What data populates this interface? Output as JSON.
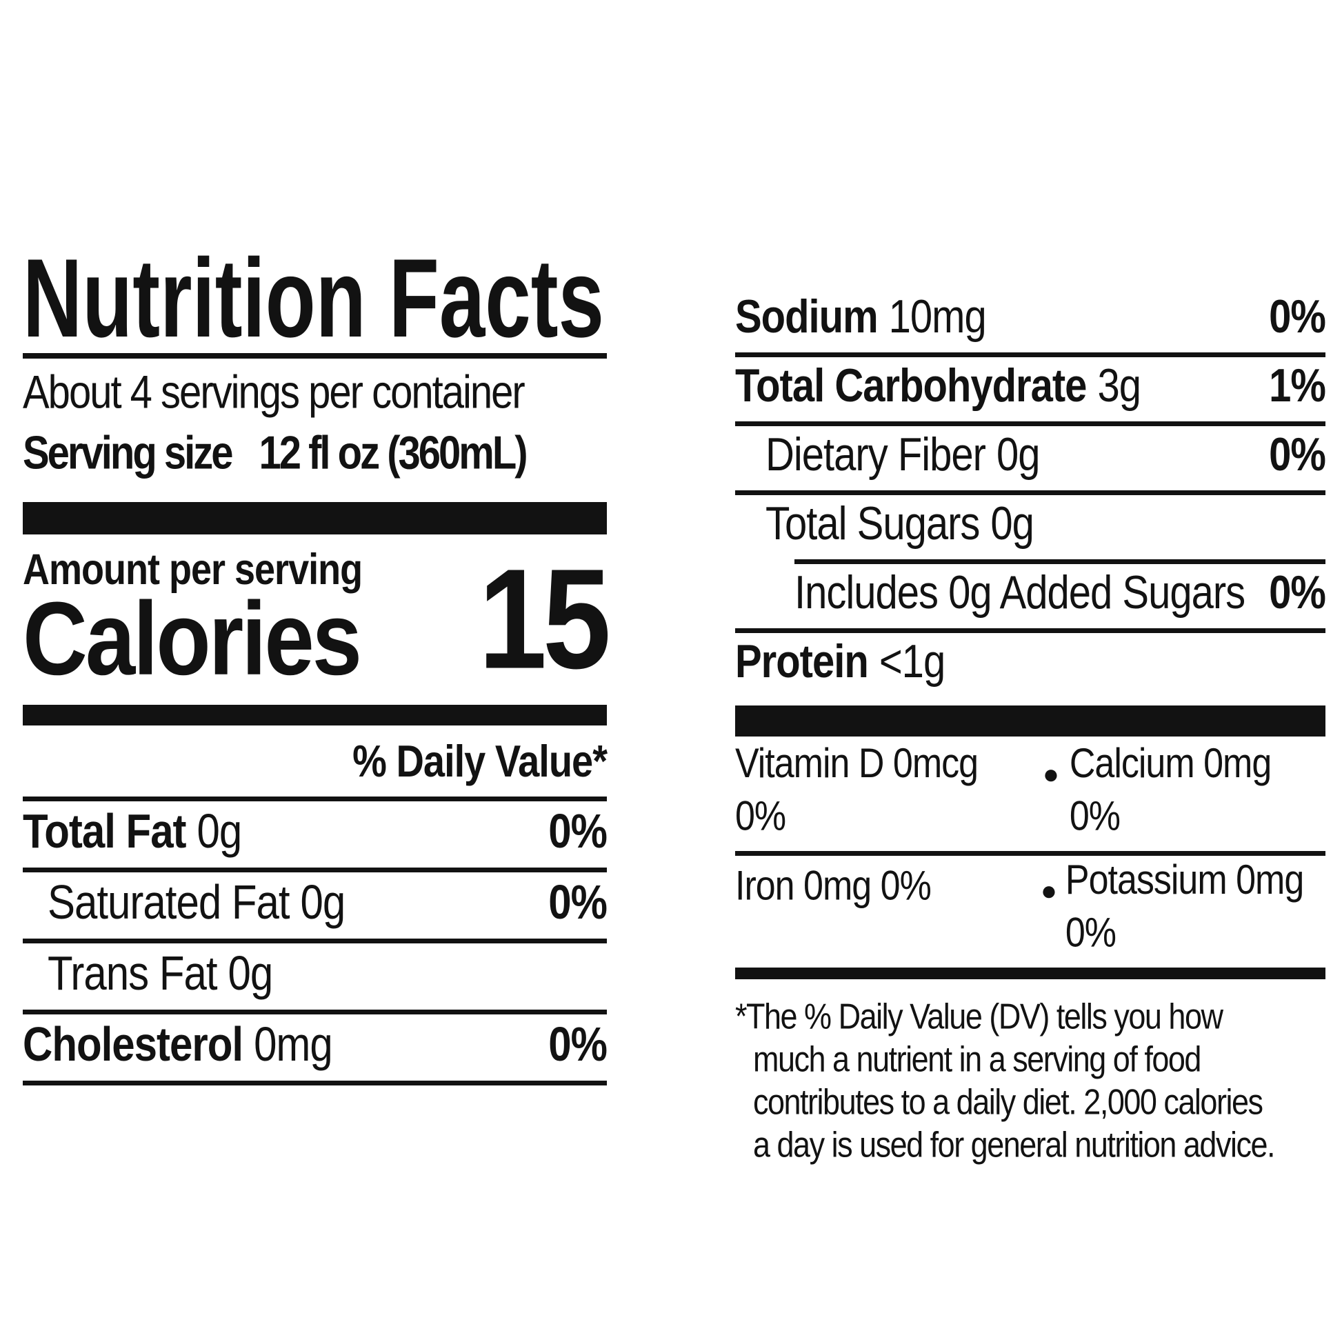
{
  "label": {
    "title": "Nutrition Facts",
    "servings_per_container": "About 4 servings per container",
    "serving_size_label": "Serving size",
    "serving_size_value": "12 fl oz (360mL)",
    "amount_per_serving": "Amount per serving",
    "calories_label": "Calories",
    "calories_value": "15",
    "daily_value_header": "% Daily Value*",
    "left_rows": [
      {
        "name": "Total Fat",
        "amount": "0g",
        "dv": "0%"
      },
      {
        "name": "Saturated Fat",
        "amount": "0g",
        "dv": "0%"
      },
      {
        "name": "Trans Fat",
        "amount": "0g",
        "dv": ""
      },
      {
        "name": "Cholesterol",
        "amount": "0mg",
        "dv": "0%"
      }
    ],
    "right_rows": [
      {
        "name": "Sodium",
        "amount": "10mg",
        "dv": "0%"
      },
      {
        "name": "Total Carbohydrate",
        "amount": "3g",
        "dv": "1%"
      },
      {
        "name": "Dietary Fiber",
        "amount": "0g",
        "dv": "0%"
      },
      {
        "name": "Total Sugars",
        "amount": "0g",
        "dv": ""
      },
      {
        "name": "Includes 0g Added Sugars",
        "amount": "",
        "dv": "0%"
      },
      {
        "name": "Protein",
        "amount": "<1g",
        "dv": ""
      }
    ],
    "bullet": "●",
    "micronutrients": [
      {
        "col1": "Vitamin D 0mcg 0%",
        "col2": "Calcium 0mg 0%"
      },
      {
        "col1": "Iron 0mg 0%",
        "col2": "Potassium 0mg 0%"
      }
    ],
    "footnote_lines": [
      "*The % Daily Value (DV) tells you how",
      "much a nutrient in a serving of food",
      "contributes to a daily diet. 2,000 calories",
      "a day is used for general nutrition advice."
    ]
  }
}
